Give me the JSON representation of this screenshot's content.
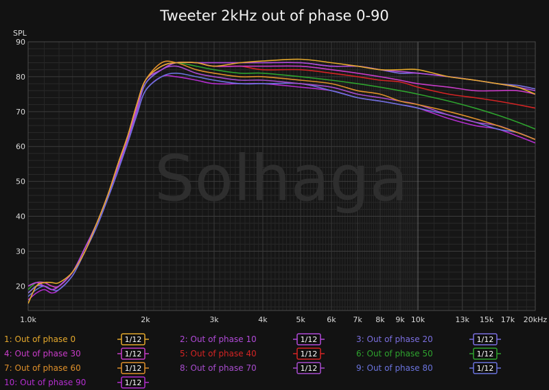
{
  "chart_data": {
    "type": "line",
    "title": "Tweeter 2kHz out of phase 0-90",
    "ylabel": "SPL",
    "xlabel": "",
    "x_scale": "log",
    "xlim": [
      1000,
      20000
    ],
    "ylim": [
      13,
      90
    ],
    "y_ticks": [
      "20",
      "30",
      "40",
      "50",
      "60",
      "70",
      "80",
      "90"
    ],
    "y_tick_values": [
      20,
      30,
      40,
      50,
      60,
      70,
      80,
      90
    ],
    "x_ticks": [
      "1.0k",
      "2k",
      "3k",
      "4k",
      "5k",
      "6k",
      "7k",
      "8k",
      "9k",
      "10k",
      "13k",
      "15k",
      "17k",
      "20kHz"
    ],
    "x_tick_values": [
      1000,
      2000,
      3000,
      4000,
      5000,
      6000,
      7000,
      8000,
      9000,
      10000,
      13000,
      15000,
      17000,
      20000
    ],
    "grid": true,
    "legend_position": "bottom",
    "smoothing_label": "1/12",
    "watermark": "Solhaga",
    "series": [
      {
        "name": "1: Out of phase 0",
        "color": "#e6a92c",
        "points": [
          [
            1000,
            15
          ],
          [
            1050,
            20
          ],
          [
            1100,
            21
          ],
          [
            1150,
            21
          ],
          [
            1200,
            21
          ],
          [
            1300,
            24
          ],
          [
            1400,
            30
          ],
          [
            1500,
            38
          ],
          [
            1600,
            46
          ],
          [
            1700,
            55
          ],
          [
            1800,
            63
          ],
          [
            1900,
            72
          ],
          [
            2000,
            79
          ],
          [
            2200,
            83
          ],
          [
            2400,
            84
          ],
          [
            2700,
            84
          ],
          [
            3000,
            83
          ],
          [
            3500,
            84
          ],
          [
            4000,
            84.5
          ],
          [
            5000,
            85
          ],
          [
            6000,
            84
          ],
          [
            7000,
            83
          ],
          [
            8000,
            82
          ],
          [
            9000,
            82
          ],
          [
            10000,
            82
          ],
          [
            12000,
            80
          ],
          [
            14000,
            79
          ],
          [
            16000,
            78
          ],
          [
            18000,
            77
          ],
          [
            20000,
            75
          ]
        ]
      },
      {
        "name": "2: Out of phase 10",
        "color": "#b24ad9",
        "points": [
          [
            1000,
            20
          ],
          [
            1050,
            21
          ],
          [
            1100,
            20
          ],
          [
            1150,
            19
          ],
          [
            1200,
            20
          ],
          [
            1300,
            24
          ],
          [
            1400,
            31
          ],
          [
            1500,
            38
          ],
          [
            1600,
            46
          ],
          [
            1700,
            54
          ],
          [
            1800,
            62
          ],
          [
            1900,
            71
          ],
          [
            2000,
            79
          ],
          [
            2200,
            82
          ],
          [
            2400,
            84
          ],
          [
            2700,
            84
          ],
          [
            3000,
            84
          ],
          [
            3500,
            84
          ],
          [
            4000,
            84
          ],
          [
            5000,
            84
          ],
          [
            6000,
            83
          ],
          [
            7000,
            83
          ],
          [
            8000,
            82
          ],
          [
            9000,
            81.5
          ],
          [
            10000,
            81
          ],
          [
            12000,
            80
          ],
          [
            14000,
            79
          ],
          [
            16000,
            78
          ],
          [
            18000,
            77
          ],
          [
            20000,
            76
          ]
        ]
      },
      {
        "name": "3: Out of phase 20",
        "color": "#7b6fe0",
        "points": [
          [
            1000,
            18
          ],
          [
            1050,
            20
          ],
          [
            1100,
            20
          ],
          [
            1150,
            19
          ],
          [
            1200,
            20
          ],
          [
            1300,
            24
          ],
          [
            1400,
            31
          ],
          [
            1500,
            38
          ],
          [
            1600,
            46
          ],
          [
            1700,
            54
          ],
          [
            1800,
            62
          ],
          [
            1900,
            71
          ],
          [
            2000,
            78
          ],
          [
            2200,
            82
          ],
          [
            2400,
            84
          ],
          [
            2700,
            84
          ],
          [
            3000,
            84
          ],
          [
            3500,
            84
          ],
          [
            4000,
            84
          ],
          [
            5000,
            84
          ],
          [
            6000,
            83
          ],
          [
            7000,
            83
          ],
          [
            8000,
            82
          ],
          [
            9000,
            81
          ],
          [
            10000,
            81
          ],
          [
            12000,
            80
          ],
          [
            14000,
            79
          ],
          [
            16000,
            78
          ],
          [
            18000,
            77.5
          ],
          [
            20000,
            76.5
          ]
        ]
      },
      {
        "name": "4: Out of phase 30",
        "color": "#c83cc8",
        "points": [
          [
            1000,
            20
          ],
          [
            1050,
            21
          ],
          [
            1100,
            21
          ],
          [
            1150,
            20
          ],
          [
            1200,
            20
          ],
          [
            1300,
            24
          ],
          [
            1400,
            31
          ],
          [
            1500,
            38
          ],
          [
            1600,
            46
          ],
          [
            1700,
            55
          ],
          [
            1800,
            63
          ],
          [
            1900,
            72
          ],
          [
            2000,
            79
          ],
          [
            2200,
            83
          ],
          [
            2400,
            84
          ],
          [
            2700,
            84
          ],
          [
            3000,
            83
          ],
          [
            3500,
            83
          ],
          [
            4000,
            83
          ],
          [
            5000,
            83
          ],
          [
            6000,
            82
          ],
          [
            7000,
            81
          ],
          [
            8000,
            80
          ],
          [
            9000,
            79
          ],
          [
            10000,
            78
          ],
          [
            12000,
            77
          ],
          [
            14000,
            76
          ],
          [
            16000,
            76
          ],
          [
            18000,
            76
          ],
          [
            20000,
            75
          ]
        ]
      },
      {
        "name": "5: Out of phase 40",
        "color": "#d42424",
        "points": [
          [
            1000,
            20
          ],
          [
            1050,
            21
          ],
          [
            1100,
            21
          ],
          [
            1150,
            20
          ],
          [
            1200,
            20
          ],
          [
            1300,
            24
          ],
          [
            1400,
            31
          ],
          [
            1500,
            38
          ],
          [
            1600,
            46
          ],
          [
            1700,
            55
          ],
          [
            1800,
            63
          ],
          [
            1900,
            72
          ],
          [
            2000,
            79
          ],
          [
            2200,
            83
          ],
          [
            2400,
            84
          ],
          [
            2700,
            84
          ],
          [
            3000,
            83
          ],
          [
            3500,
            83
          ],
          [
            4000,
            82
          ],
          [
            5000,
            82
          ],
          [
            6000,
            81
          ],
          [
            7000,
            80
          ],
          [
            8000,
            79
          ],
          [
            9000,
            78.5
          ],
          [
            10000,
            77
          ],
          [
            12000,
            75
          ],
          [
            14000,
            74
          ],
          [
            16000,
            73
          ],
          [
            18000,
            72
          ],
          [
            20000,
            71
          ]
        ]
      },
      {
        "name": "6: Out of phase 50",
        "color": "#2ea32e",
        "points": [
          [
            1000,
            19
          ],
          [
            1050,
            21
          ],
          [
            1100,
            21
          ],
          [
            1150,
            20
          ],
          [
            1200,
            20
          ],
          [
            1300,
            24
          ],
          [
            1400,
            31
          ],
          [
            1500,
            38
          ],
          [
            1600,
            46
          ],
          [
            1700,
            55
          ],
          [
            1800,
            63
          ],
          [
            1900,
            72
          ],
          [
            2000,
            79
          ],
          [
            2200,
            83
          ],
          [
            2400,
            84
          ],
          [
            2700,
            83
          ],
          [
            3000,
            82
          ],
          [
            3500,
            81
          ],
          [
            4000,
            81
          ],
          [
            5000,
            80
          ],
          [
            6000,
            79
          ],
          [
            7000,
            78
          ],
          [
            8000,
            77
          ],
          [
            9000,
            76
          ],
          [
            10000,
            75
          ],
          [
            12000,
            73
          ],
          [
            14000,
            71
          ],
          [
            16000,
            69
          ],
          [
            18000,
            67
          ],
          [
            20000,
            65
          ]
        ]
      },
      {
        "name": "7: Out of phase 60",
        "color": "#e0902a",
        "points": [
          [
            1000,
            18
          ],
          [
            1050,
            20
          ],
          [
            1100,
            21
          ],
          [
            1150,
            20
          ],
          [
            1200,
            20
          ],
          [
            1300,
            24
          ],
          [
            1400,
            31
          ],
          [
            1500,
            38
          ],
          [
            1600,
            46
          ],
          [
            1700,
            55
          ],
          [
            1800,
            63
          ],
          [
            1900,
            72
          ],
          [
            2000,
            79
          ],
          [
            2200,
            84
          ],
          [
            2400,
            84
          ],
          [
            2700,
            82
          ],
          [
            3000,
            81
          ],
          [
            3500,
            80
          ],
          [
            4000,
            80
          ],
          [
            5000,
            79
          ],
          [
            6000,
            78
          ],
          [
            7000,
            76
          ],
          [
            8000,
            75
          ],
          [
            9000,
            73
          ],
          [
            10000,
            72
          ],
          [
            12000,
            70
          ],
          [
            14000,
            68
          ],
          [
            16000,
            66
          ],
          [
            18000,
            64
          ],
          [
            20000,
            62
          ]
        ]
      },
      {
        "name": "8: Out of phase 70",
        "color": "#a84ccf",
        "points": [
          [
            1000,
            18
          ],
          [
            1050,
            20
          ],
          [
            1100,
            20
          ],
          [
            1150,
            19
          ],
          [
            1200,
            20
          ],
          [
            1300,
            24
          ],
          [
            1400,
            31
          ],
          [
            1500,
            38
          ],
          [
            1600,
            46
          ],
          [
            1700,
            54
          ],
          [
            1800,
            62
          ],
          [
            1900,
            70
          ],
          [
            2000,
            78
          ],
          [
            2200,
            82
          ],
          [
            2400,
            83
          ],
          [
            2700,
            81
          ],
          [
            3000,
            80
          ],
          [
            3500,
            79
          ],
          [
            4000,
            79
          ],
          [
            5000,
            78
          ],
          [
            6000,
            77
          ],
          [
            7000,
            75
          ],
          [
            8000,
            74
          ],
          [
            9000,
            73
          ],
          [
            10000,
            72
          ],
          [
            12000,
            69
          ],
          [
            14000,
            67
          ],
          [
            16000,
            66
          ],
          [
            18000,
            64
          ],
          [
            20000,
            62
          ]
        ]
      },
      {
        "name": "9: Out of phase 80",
        "color": "#6a73dd",
        "points": [
          [
            1000,
            17
          ],
          [
            1050,
            19
          ],
          [
            1100,
            20
          ],
          [
            1150,
            19
          ],
          [
            1200,
            19
          ],
          [
            1300,
            23
          ],
          [
            1400,
            30
          ],
          [
            1500,
            37
          ],
          [
            1600,
            45
          ],
          [
            1700,
            53
          ],
          [
            1800,
            61
          ],
          [
            1900,
            69
          ],
          [
            2000,
            76
          ],
          [
            2200,
            80
          ],
          [
            2400,
            81
          ],
          [
            2700,
            80
          ],
          [
            3000,
            79
          ],
          [
            3500,
            78
          ],
          [
            4000,
            78
          ],
          [
            5000,
            78
          ],
          [
            6000,
            76
          ],
          [
            7000,
            74
          ],
          [
            8000,
            73
          ],
          [
            9000,
            72
          ],
          [
            10000,
            71
          ],
          [
            12000,
            69
          ],
          [
            14000,
            67
          ],
          [
            16000,
            65
          ],
          [
            18000,
            64
          ],
          [
            20000,
            62
          ]
        ]
      },
      {
        "name": "10: Out of phase 90",
        "color": "#b42ed0",
        "points": [
          [
            1000,
            16
          ],
          [
            1050,
            18
          ],
          [
            1100,
            19
          ],
          [
            1150,
            18
          ],
          [
            1200,
            19
          ],
          [
            1300,
            23
          ],
          [
            1400,
            30
          ],
          [
            1500,
            37
          ],
          [
            1600,
            45
          ],
          [
            1700,
            53
          ],
          [
            1800,
            61
          ],
          [
            1900,
            69
          ],
          [
            2000,
            76
          ],
          [
            2200,
            80
          ],
          [
            2400,
            80
          ],
          [
            2700,
            79
          ],
          [
            3000,
            78
          ],
          [
            3500,
            78
          ],
          [
            4000,
            78
          ],
          [
            5000,
            77
          ],
          [
            6000,
            76
          ],
          [
            7000,
            74
          ],
          [
            8000,
            73
          ],
          [
            9000,
            72
          ],
          [
            10000,
            71
          ],
          [
            12000,
            68
          ],
          [
            14000,
            66
          ],
          [
            16000,
            65
          ],
          [
            18000,
            63
          ],
          [
            20000,
            61
          ]
        ]
      }
    ]
  }
}
